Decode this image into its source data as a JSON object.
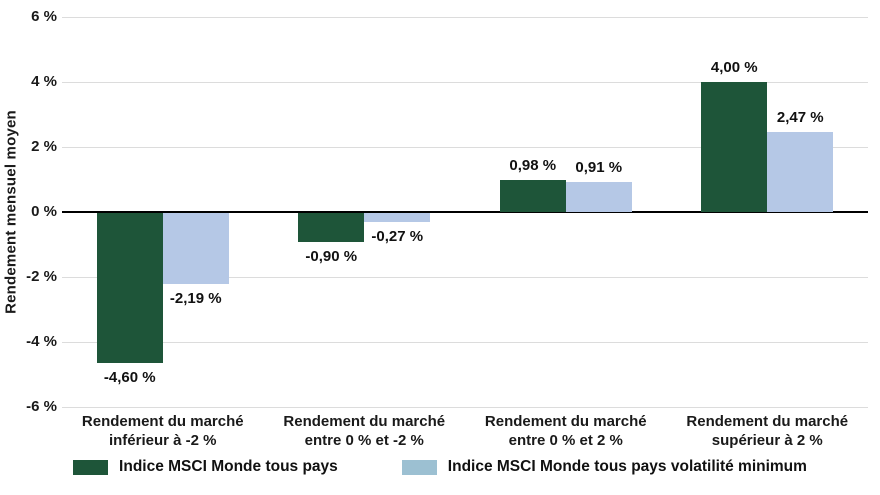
{
  "chart_data": {
    "type": "bar",
    "title": "",
    "xlabel": "",
    "ylabel": "Rendement mensuel moyen",
    "ylim": [
      -6,
      6
    ],
    "ytick_values": [
      6,
      4,
      2,
      0,
      -2,
      -4,
      -6
    ],
    "ytick_labels": [
      "6 %",
      "4 %",
      "2 %",
      "0 %",
      "-2 %",
      "-4 %",
      "-6 %"
    ],
    "grid": "horizontal-on",
    "legend_position": "bottom",
    "categories": [
      [
        "Rendement du marché",
        "inférieur à -2 %"
      ],
      [
        "Rendement du marché",
        "entre 0 % et -2 %"
      ],
      [
        "Rendement du marché",
        "entre 0 % et 2 %"
      ],
      [
        "Rendement du marché",
        "supérieur à 2 %"
      ]
    ],
    "series": [
      {
        "name": "Indice MSCI Monde tous pays",
        "bar_color": "#1E5539",
        "legend_color": "#1E5539",
        "values": [
          -4.6,
          -0.9,
          0.98,
          4.0
        ],
        "value_labels": [
          "-4,60 %",
          "-0,90 %",
          "0,98 %",
          "4,00 %"
        ]
      },
      {
        "name": "Indice MSCI Monde tous pays volatilité minimum",
        "bar_color": "#B5C8E6",
        "legend_color": "#9CC0D2",
        "values": [
          -2.19,
          -0.27,
          0.91,
          2.47
        ],
        "value_labels": [
          "-2,19 %",
          "-0,27 %",
          "0,91 %",
          "2,47 %"
        ]
      }
    ],
    "colors": {
      "grid_line": "#DCDCDC",
      "zero_line": "#000000",
      "text": "#1A1A1A",
      "background": "#FFFFFF"
    }
  }
}
